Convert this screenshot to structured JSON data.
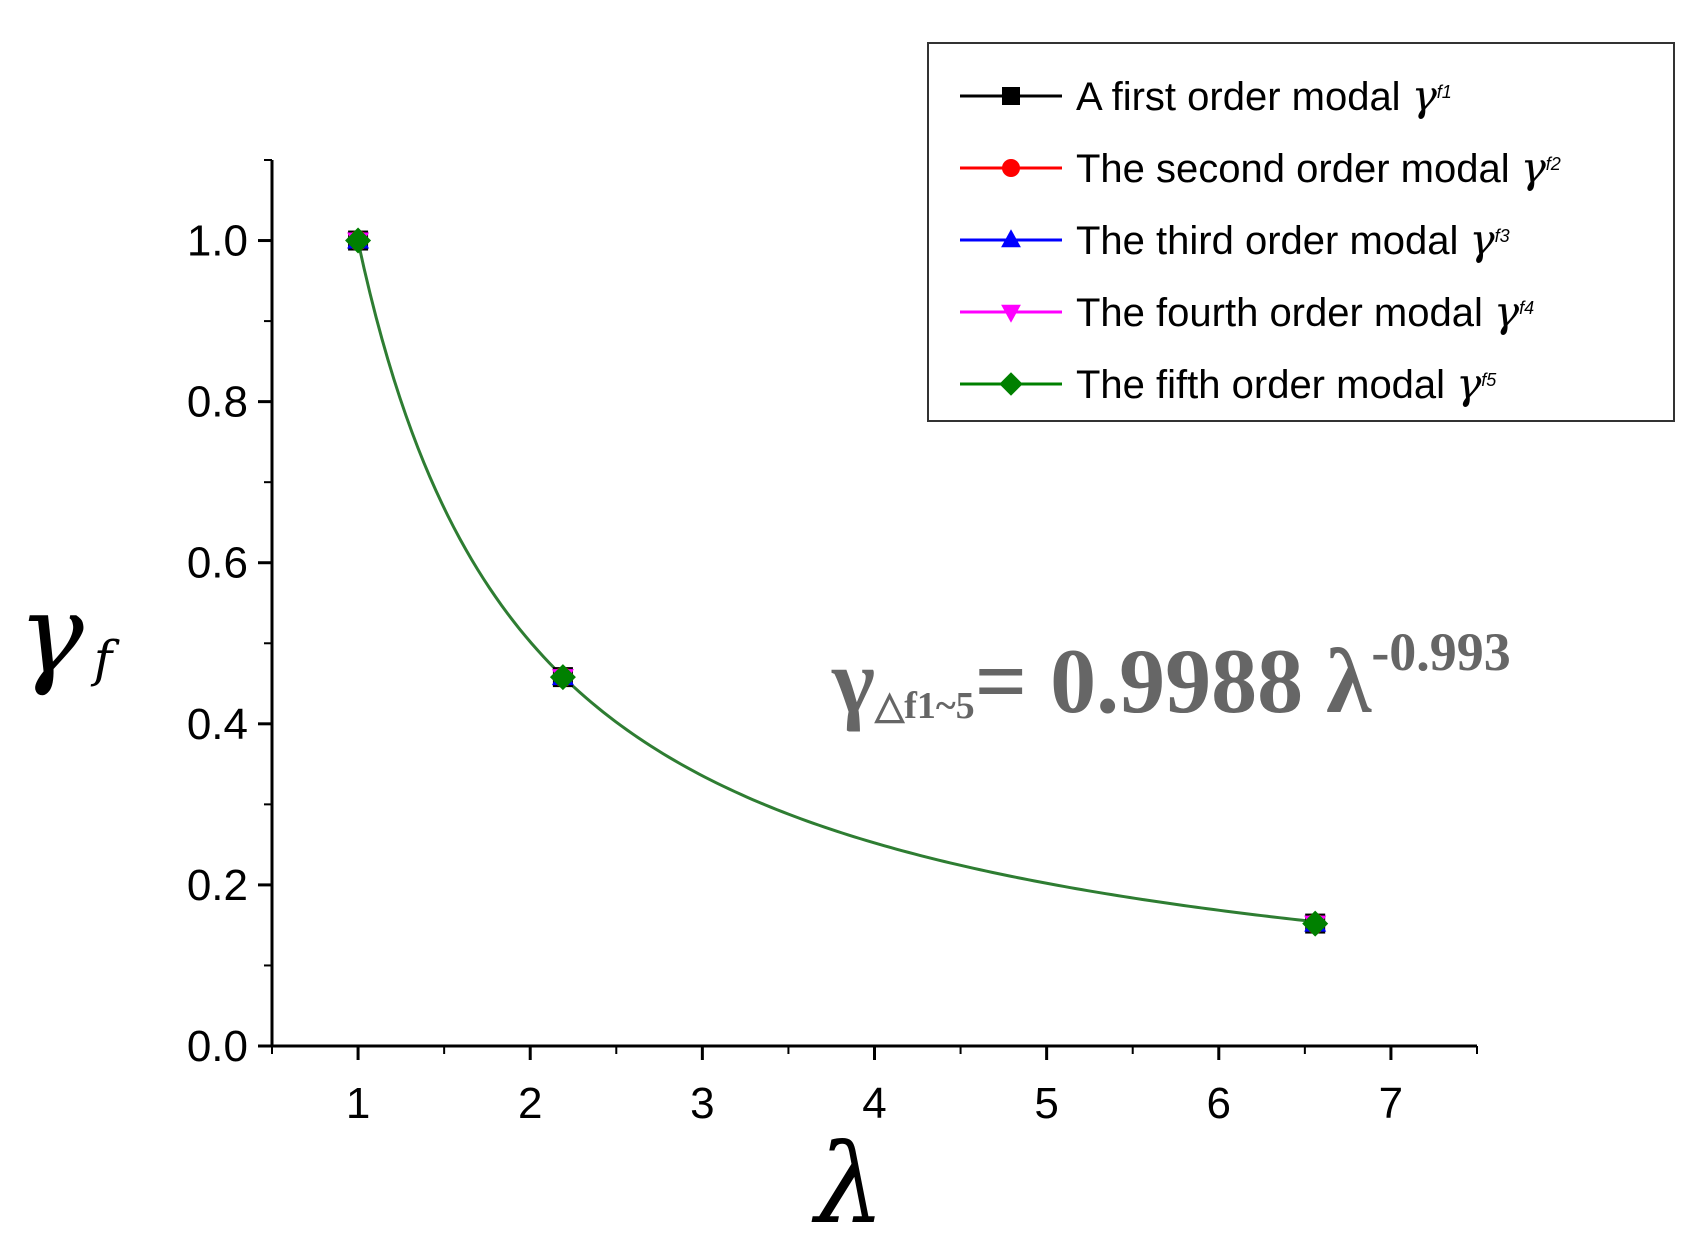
{
  "chart_data": {
    "type": "scatter",
    "xlabel": "λ",
    "ylabel": "γ",
    "ylabel_sub": "f",
    "xlim": [
      0.5,
      7.5
    ],
    "ylim": [
      0,
      1.1
    ],
    "x_ticks": [
      1,
      2,
      3,
      4,
      5,
      6,
      7
    ],
    "y_ticks": [
      0.0,
      0.2,
      0.4,
      0.6,
      0.8,
      1.0
    ],
    "x_tick_labels": [
      "1",
      "2",
      "3",
      "4",
      "5",
      "6",
      "7"
    ],
    "y_tick_labels": [
      "0.0",
      "0.2",
      "0.4",
      "0.6",
      "0.8",
      "1.0"
    ],
    "legend_position": "top-right",
    "series": [
      {
        "name": "A first order modal",
        "symbol": "γ",
        "sub": "f1",
        "color": "#000000",
        "marker": "square",
        "x": [
          1,
          2.19,
          6.56
        ],
        "y": [
          1.0,
          0.458,
          0.152
        ]
      },
      {
        "name": "The second order modal",
        "symbol": "γ",
        "sub": "f2",
        "color": "#ff0000",
        "marker": "circle",
        "x": [
          1,
          2.19,
          6.56
        ],
        "y": [
          1.0,
          0.458,
          0.152
        ]
      },
      {
        "name": "The third order modal",
        "symbol": "γ",
        "sub": "f3",
        "color": "#0000ff",
        "marker": "triangle-up",
        "x": [
          1,
          2.19,
          6.56
        ],
        "y": [
          1.0,
          0.458,
          0.152
        ]
      },
      {
        "name": "The fourth order modal",
        "symbol": "γ",
        "sub": "f4",
        "color": "#ff00ff",
        "marker": "triangle-down",
        "x": [
          1,
          2.19,
          6.56
        ],
        "y": [
          1.0,
          0.458,
          0.152
        ]
      },
      {
        "name": "The fifth order modal",
        "symbol": "γ",
        "sub": "f5",
        "color": "#008000",
        "marker": "diamond",
        "x": [
          1,
          2.19,
          6.56
        ],
        "y": [
          1.0,
          0.458,
          0.152
        ]
      }
    ],
    "fit": {
      "a": 0.9988,
      "b": -0.993,
      "x_range": [
        1,
        6.56
      ],
      "color": "#2e7d32"
    },
    "equation": {
      "lhs": "γ",
      "sub": "△f1~5",
      "rhs": "= 0.9988 λ",
      "exp": "-0.993"
    }
  }
}
